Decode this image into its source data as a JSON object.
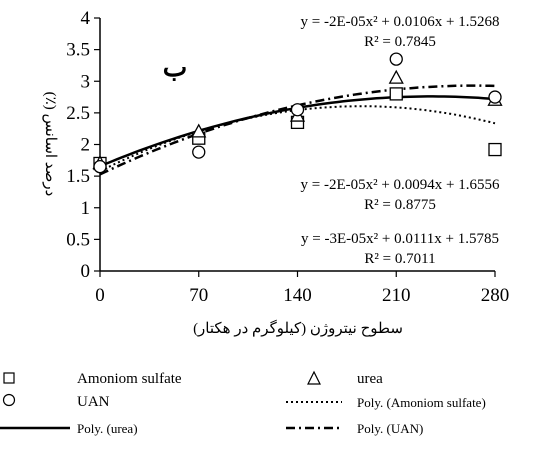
{
  "chart_data": {
    "type": "scatter",
    "panel_label": "ب",
    "xlabel": "سطوح نیتروژن (کیلوگرم در هکتار)",
    "ylabel": "درصد اسانس (٪)",
    "x": [
      0,
      70,
      140,
      210,
      280
    ],
    "x_tick_labels": [
      "0",
      "70",
      "140",
      "210",
      "280"
    ],
    "xlim": [
      0,
      280
    ],
    "ylim": [
      0,
      4
    ],
    "y_ticks": [
      0,
      0.5,
      1,
      1.5,
      2,
      2.5,
      3,
      3.5,
      4
    ],
    "y_tick_labels": [
      "0",
      "0.5",
      "1",
      "1.5",
      "2",
      "2.5",
      "3",
      "3.5",
      "4"
    ],
    "grid": false,
    "series": [
      {
        "name": "Amoniom sulfate",
        "marker": "square",
        "values": [
          1.7,
          2.1,
          2.35,
          2.8,
          1.92
        ]
      },
      {
        "name": "urea",
        "marker": "triangle",
        "values": [
          1.7,
          2.2,
          2.45,
          3.05,
          2.7
        ]
      },
      {
        "name": "UAN",
        "marker": "circle",
        "values": [
          1.65,
          1.88,
          2.55,
          3.35,
          2.75
        ]
      }
    ],
    "trendlines": [
      {
        "name": "Poly. (Amoniom sulfate)",
        "style": "dotted",
        "coef": [
          -3e-05,
          0.0111,
          1.5785
        ],
        "equation": "y = -3E-05x² + 0.0111x + 1.5785",
        "r2": "R² = 0.7011"
      },
      {
        "name": "Poly. (urea)",
        "style": "solid",
        "coef": [
          -2e-05,
          0.0094,
          1.6556
        ],
        "equation": "y = -2E-05x² + 0.0094x + 1.6556",
        "r2": "R² = 0.8775"
      },
      {
        "name": "Poly. (UAN)",
        "style": "dashdot",
        "coef": [
          -2e-05,
          0.0106,
          1.5268
        ],
        "equation": "y = -2E-05x² + 0.0106x + 1.5268",
        "r2": "R² = 0.7845"
      }
    ],
    "legend_position": "bottom"
  }
}
